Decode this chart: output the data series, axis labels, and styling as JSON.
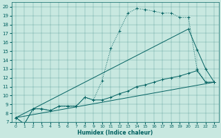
{
  "xlabel": "Humidex (Indice chaleur)",
  "background_color": "#c8e8e0",
  "line_color": "#006060",
  "xlim": [
    -0.5,
    23.5
  ],
  "ylim": [
    7,
    20.5
  ],
  "yticks": [
    7,
    8,
    9,
    10,
    11,
    12,
    13,
    14,
    15,
    16,
    17,
    18,
    19,
    20
  ],
  "xticks": [
    0,
    1,
    2,
    3,
    4,
    5,
    6,
    7,
    8,
    9,
    10,
    11,
    12,
    13,
    14,
    15,
    16,
    17,
    18,
    19,
    20,
    21,
    22,
    23
  ],
  "series1_x": [
    0,
    1,
    2,
    3,
    4,
    5,
    6,
    7,
    8,
    9,
    10,
    11,
    12,
    13,
    14,
    15,
    16,
    17,
    18,
    19,
    20,
    21,
    22,
    23
  ],
  "series1_y": [
    7.5,
    6.8,
    8.5,
    8.5,
    8.3,
    8.8,
    8.8,
    8.8,
    9.8,
    9.5,
    11.7,
    15.3,
    17.3,
    19.3,
    19.8,
    19.7,
    19.5,
    19.3,
    19.3,
    18.8,
    18.8,
    13.0,
    11.5,
    11.5
  ],
  "series2_x": [
    0,
    23
  ],
  "series2_y": [
    7.5,
    11.5
  ],
  "series3_x": [
    0,
    20,
    21,
    22,
    23
  ],
  "series3_y": [
    7.5,
    17.5,
    15.2,
    13.0,
    11.5
  ],
  "series4_x": [
    0,
    1,
    2,
    3,
    4,
    5,
    6,
    7,
    8,
    9,
    10,
    11,
    12,
    13,
    14,
    15,
    16,
    17,
    18,
    19,
    20,
    21,
    22,
    23
  ],
  "series4_y": [
    7.5,
    6.8,
    8.5,
    8.5,
    8.3,
    8.8,
    8.8,
    8.8,
    9.8,
    9.5,
    9.5,
    9.8,
    10.2,
    10.5,
    11.0,
    11.2,
    11.5,
    11.8,
    12.0,
    12.2,
    12.5,
    12.8,
    11.5,
    11.5
  ]
}
